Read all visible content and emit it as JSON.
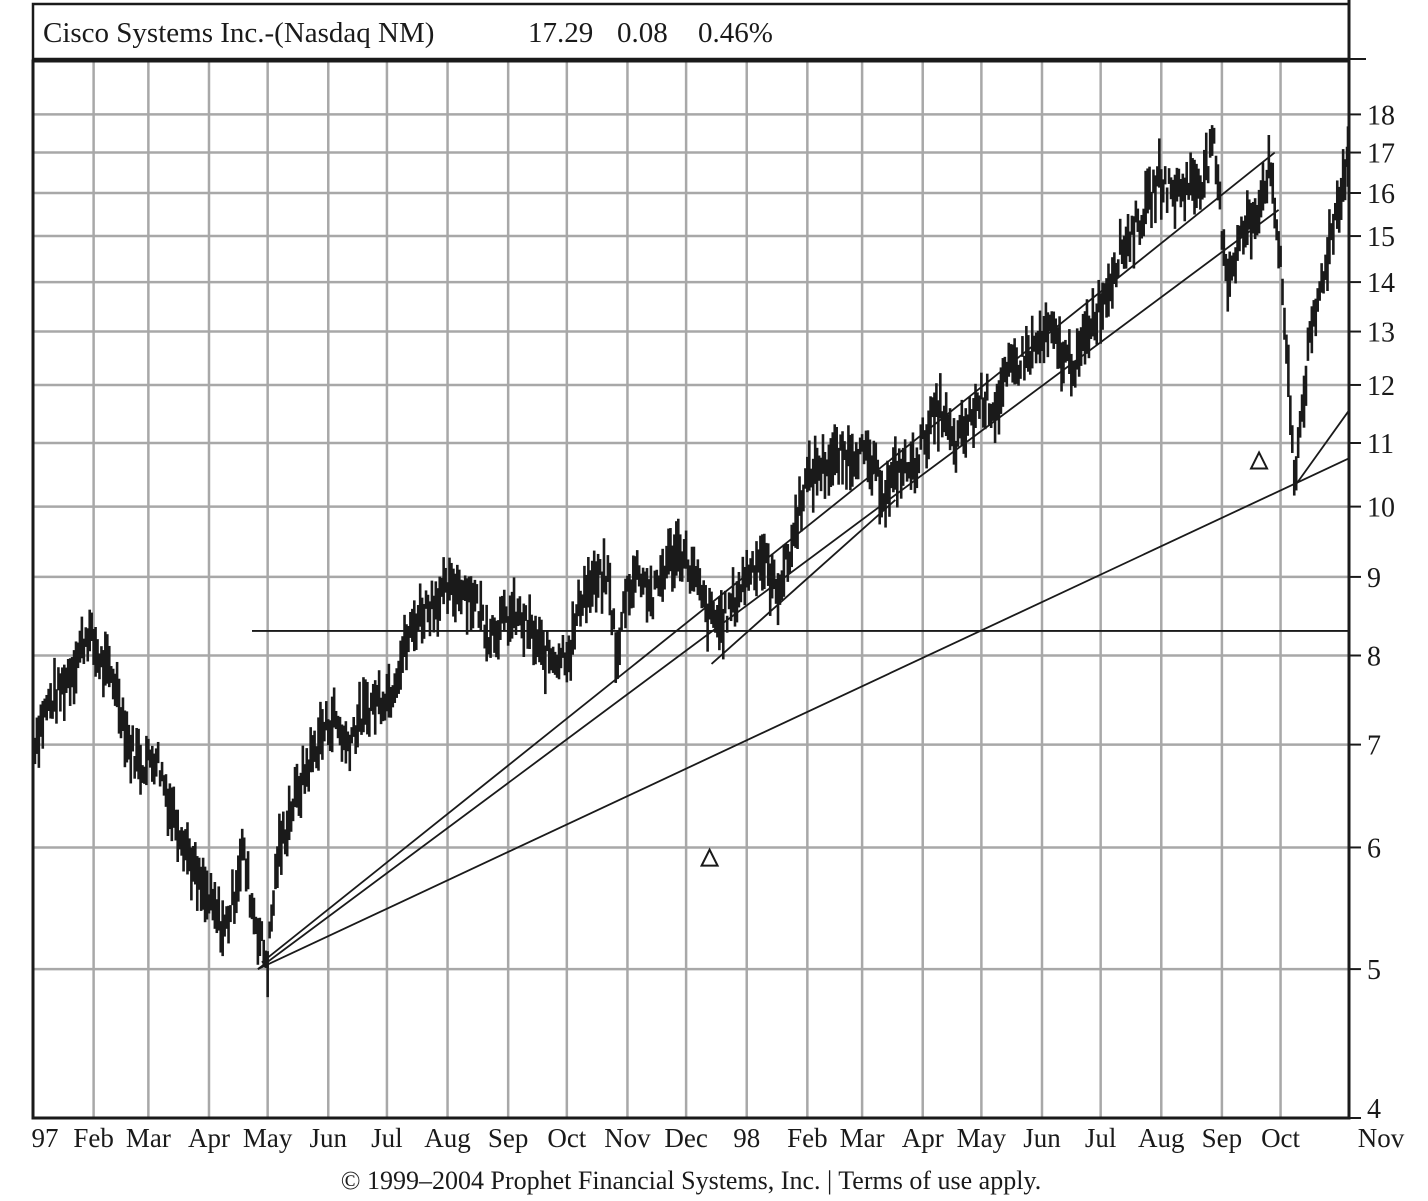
{
  "chart_data": {
    "type": "line",
    "title": "Cisco Systems Inc.-(Nasdaq NM)",
    "quote": {
      "last": "17.29",
      "change": "0.08",
      "percent": "0.46%"
    },
    "xlabel": "",
    "ylabel": "",
    "y_scale": "log",
    "ylim": [
      4,
      19.5
    ],
    "y_ticks": [
      4,
      5,
      6,
      7,
      8,
      9,
      10,
      11,
      12,
      13,
      14,
      15,
      16,
      17,
      18
    ],
    "x_ticks": [
      "97",
      "Feb",
      "Mar",
      "Apr",
      "May",
      "Jun",
      "Jul",
      "Aug",
      "Sep",
      "Oct",
      "Nov",
      "Dec",
      "98",
      "Feb",
      "Mar",
      "Apr",
      "May",
      "Jun",
      "Jul",
      "Aug",
      "Sep",
      "Oct",
      "Nov"
    ],
    "x_range": [
      "1997-01-01",
      "1998-11-05"
    ],
    "grid": true,
    "series": [
      {
        "type": "high-low price bars",
        "points": [
          [
            "1997-01-01",
            7.0
          ],
          [
            "1997-01-08",
            7.4
          ],
          [
            "1997-01-15",
            7.6
          ],
          [
            "1997-01-22",
            7.9
          ],
          [
            "1997-01-29",
            8.3
          ],
          [
            "1997-02-05",
            7.9
          ],
          [
            "1997-02-12",
            7.7
          ],
          [
            "1997-02-19",
            7.0
          ],
          [
            "1997-02-26",
            6.8
          ],
          [
            "1997-03-05",
            6.9
          ],
          [
            "1997-03-12",
            6.4
          ],
          [
            "1997-03-19",
            6.1
          ],
          [
            "1997-03-26",
            5.7
          ],
          [
            "1997-04-02",
            5.5
          ],
          [
            "1997-04-09",
            5.3
          ],
          [
            "1997-04-14",
            5.6
          ],
          [
            "1997-04-18",
            6.0
          ],
          [
            "1997-04-23",
            5.5
          ],
          [
            "1997-04-28",
            5.2
          ],
          [
            "1997-05-01",
            5.05
          ],
          [
            "1997-05-06",
            5.9
          ],
          [
            "1997-05-12",
            6.3
          ],
          [
            "1997-05-20",
            6.7
          ],
          [
            "1997-05-28",
            7.1
          ],
          [
            "1997-06-04",
            7.3
          ],
          [
            "1997-06-10",
            7.0
          ],
          [
            "1997-06-18",
            7.3
          ],
          [
            "1997-06-26",
            7.5
          ],
          [
            "1997-07-03",
            7.6
          ],
          [
            "1997-07-10",
            8.1
          ],
          [
            "1997-07-17",
            8.5
          ],
          [
            "1997-07-25",
            8.7
          ],
          [
            "1997-08-01",
            8.8
          ],
          [
            "1997-08-08",
            8.9
          ],
          [
            "1997-08-15",
            8.7
          ],
          [
            "1997-08-22",
            8.3
          ],
          [
            "1997-08-29",
            8.4
          ],
          [
            "1997-09-05",
            8.5
          ],
          [
            "1997-09-12",
            8.3
          ],
          [
            "1997-09-19",
            8.0
          ],
          [
            "1997-09-26",
            8.0
          ],
          [
            "1997-10-03",
            8.1
          ],
          [
            "1997-10-09",
            8.8
          ],
          [
            "1997-10-15",
            8.9
          ],
          [
            "1997-10-22",
            9.0
          ],
          [
            "1997-10-27",
            7.9
          ],
          [
            "1997-10-31",
            8.8
          ],
          [
            "1997-11-07",
            9.1
          ],
          [
            "1997-11-14",
            8.7
          ],
          [
            "1997-11-21",
            9.2
          ],
          [
            "1997-11-28",
            9.4
          ],
          [
            "1997-12-05",
            9.0
          ],
          [
            "1997-12-12",
            8.5
          ],
          [
            "1997-12-19",
            8.4
          ],
          [
            "1997-12-26",
            8.7
          ],
          [
            "1998-01-02",
            9.1
          ],
          [
            "1998-01-09",
            9.3
          ],
          [
            "1998-01-16",
            8.8
          ],
          [
            "1998-01-23",
            9.3
          ],
          [
            "1998-01-30",
            10.3
          ],
          [
            "1998-02-06",
            10.6
          ],
          [
            "1998-02-13",
            10.7
          ],
          [
            "1998-02-20",
            10.8
          ],
          [
            "1998-02-27",
            10.9
          ],
          [
            "1998-03-06",
            10.6
          ],
          [
            "1998-03-13",
            10.2
          ],
          [
            "1998-03-20",
            10.6
          ],
          [
            "1998-03-27",
            10.6
          ],
          [
            "1998-04-03",
            11.2
          ],
          [
            "1998-04-10",
            11.6
          ],
          [
            "1998-04-17",
            10.9
          ],
          [
            "1998-04-24",
            11.3
          ],
          [
            "1998-05-01",
            11.8
          ],
          [
            "1998-05-08",
            11.6
          ],
          [
            "1998-05-15",
            12.2
          ],
          [
            "1998-05-22",
            12.5
          ],
          [
            "1998-05-29",
            12.7
          ],
          [
            "1998-06-05",
            13.0
          ],
          [
            "1998-06-12",
            12.5
          ],
          [
            "1998-06-19",
            12.4
          ],
          [
            "1998-06-26",
            13.2
          ],
          [
            "1998-07-03",
            13.7
          ],
          [
            "1998-07-10",
            14.6
          ],
          [
            "1998-07-17",
            15.1
          ],
          [
            "1998-07-24",
            15.6
          ],
          [
            "1998-07-31",
            16.4
          ],
          [
            "1998-08-07",
            16.0
          ],
          [
            "1998-08-14",
            16.2
          ],
          [
            "1998-08-21",
            16.3
          ],
          [
            "1998-08-28",
            17.1
          ],
          [
            "1998-09-01",
            15.2
          ],
          [
            "1998-09-04",
            14.1
          ],
          [
            "1998-09-11",
            15.0
          ],
          [
            "1998-09-18",
            15.5
          ],
          [
            "1998-09-25",
            16.6
          ],
          [
            "1998-10-01",
            14.5
          ],
          [
            "1998-10-05",
            12.0
          ],
          [
            "1998-10-08",
            10.4
          ],
          [
            "1998-10-15",
            12.5
          ],
          [
            "1998-10-22",
            14.0
          ],
          [
            "1998-10-29",
            15.5
          ],
          [
            "1998-11-05",
            17.0
          ]
        ]
      }
    ],
    "trendlines": [
      [
        [
          "1997-04-23",
          8.3
        ],
        [
          "1998-11-05",
          8.3
        ]
      ],
      [
        [
          "1997-04-28",
          5.05
        ],
        [
          "1998-09-28",
          17.0
        ]
      ],
      [
        [
          "1997-04-26",
          5.0
        ],
        [
          "1998-09-30",
          15.6
        ]
      ],
      [
        [
          "1997-04-26",
          5.0
        ],
        [
          "1998-11-05",
          10.75
        ]
      ],
      [
        [
          "1997-12-14",
          7.9
        ],
        [
          "1998-03-18",
          10.1
        ]
      ],
      [
        [
          "1998-10-08",
          10.3
        ],
        [
          "1998-11-05",
          11.55
        ]
      ]
    ],
    "markers": [
      [
        "1997-12-13",
        5.9
      ],
      [
        "1998-09-20",
        10.7
      ]
    ]
  },
  "footer": "© 1999–2004 Prophet Financial Systems, Inc. | Terms of use apply."
}
